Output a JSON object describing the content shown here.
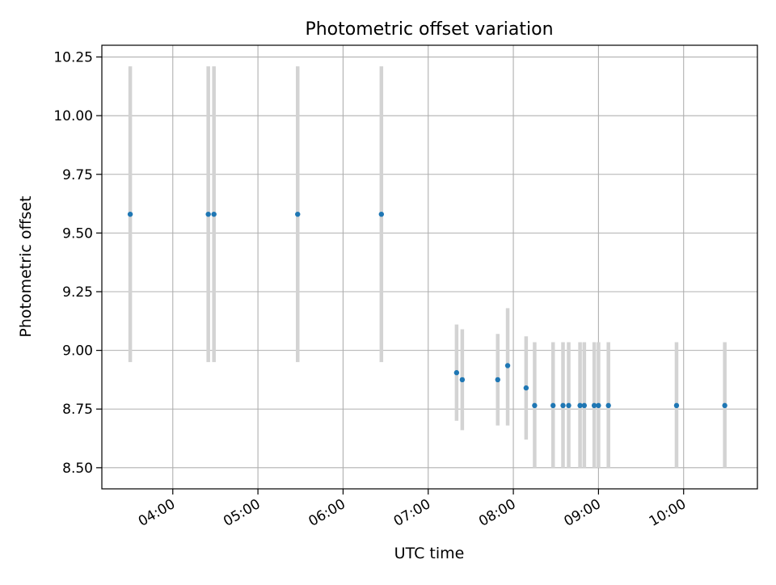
{
  "chart_data": {
    "type": "scatter",
    "title": "Photometric offset variation",
    "xlabel": "UTC time",
    "ylabel": "Photometric offset",
    "x_axis": {
      "type": "time",
      "range": [
        "03:10",
        "10:52"
      ],
      "ticks": [
        "04:00",
        "05:00",
        "06:00",
        "07:00",
        "08:00",
        "09:00",
        "10:00"
      ]
    },
    "y_axis": {
      "range": [
        8.41,
        10.3
      ],
      "ticks": [
        "8.50",
        "8.75",
        "9.00",
        "9.25",
        "9.50",
        "9.75",
        "10.00",
        "10.25"
      ]
    },
    "grid": true,
    "marker_color": "#1f77b4",
    "errorbar_color": "#d3d3d3",
    "points": [
      {
        "time": "03:30",
        "y": 9.58,
        "ylow": 8.95,
        "yhigh": 10.21
      },
      {
        "time": "04:25",
        "y": 9.58,
        "ylow": 8.95,
        "yhigh": 10.21
      },
      {
        "time": "04:29",
        "y": 9.58,
        "ylow": 8.95,
        "yhigh": 10.21
      },
      {
        "time": "05:28",
        "y": 9.58,
        "ylow": 8.95,
        "yhigh": 10.21
      },
      {
        "time": "06:27",
        "y": 9.58,
        "ylow": 8.95,
        "yhigh": 10.21
      },
      {
        "time": "07:20",
        "y": 8.905,
        "ylow": 8.7,
        "yhigh": 9.11
      },
      {
        "time": "07:24",
        "y": 8.875,
        "ylow": 8.66,
        "yhigh": 9.09
      },
      {
        "time": "07:49",
        "y": 8.875,
        "ylow": 8.68,
        "yhigh": 9.07
      },
      {
        "time": "07:56",
        "y": 8.935,
        "ylow": 8.68,
        "yhigh": 9.18
      },
      {
        "time": "08:09",
        "y": 8.84,
        "ylow": 8.62,
        "yhigh": 9.06
      },
      {
        "time": "08:15",
        "y": 8.765,
        "ylow": 8.5,
        "yhigh": 9.035
      },
      {
        "time": "08:28",
        "y": 8.765,
        "ylow": 8.5,
        "yhigh": 9.035
      },
      {
        "time": "08:35",
        "y": 8.765,
        "ylow": 8.5,
        "yhigh": 9.035
      },
      {
        "time": "08:39",
        "y": 8.765,
        "ylow": 8.5,
        "yhigh": 9.035
      },
      {
        "time": "08:47",
        "y": 8.765,
        "ylow": 8.5,
        "yhigh": 9.035
      },
      {
        "time": "08:50",
        "y": 8.765,
        "ylow": 8.5,
        "yhigh": 9.035
      },
      {
        "time": "08:57",
        "y": 8.765,
        "ylow": 8.5,
        "yhigh": 9.035
      },
      {
        "time": "09:00",
        "y": 8.765,
        "ylow": 8.5,
        "yhigh": 9.035
      },
      {
        "time": "09:07",
        "y": 8.765,
        "ylow": 8.5,
        "yhigh": 9.035
      },
      {
        "time": "09:55",
        "y": 8.765,
        "ylow": 8.5,
        "yhigh": 9.035
      },
      {
        "time": "10:29",
        "y": 8.765,
        "ylow": 8.5,
        "yhigh": 9.035
      }
    ]
  }
}
